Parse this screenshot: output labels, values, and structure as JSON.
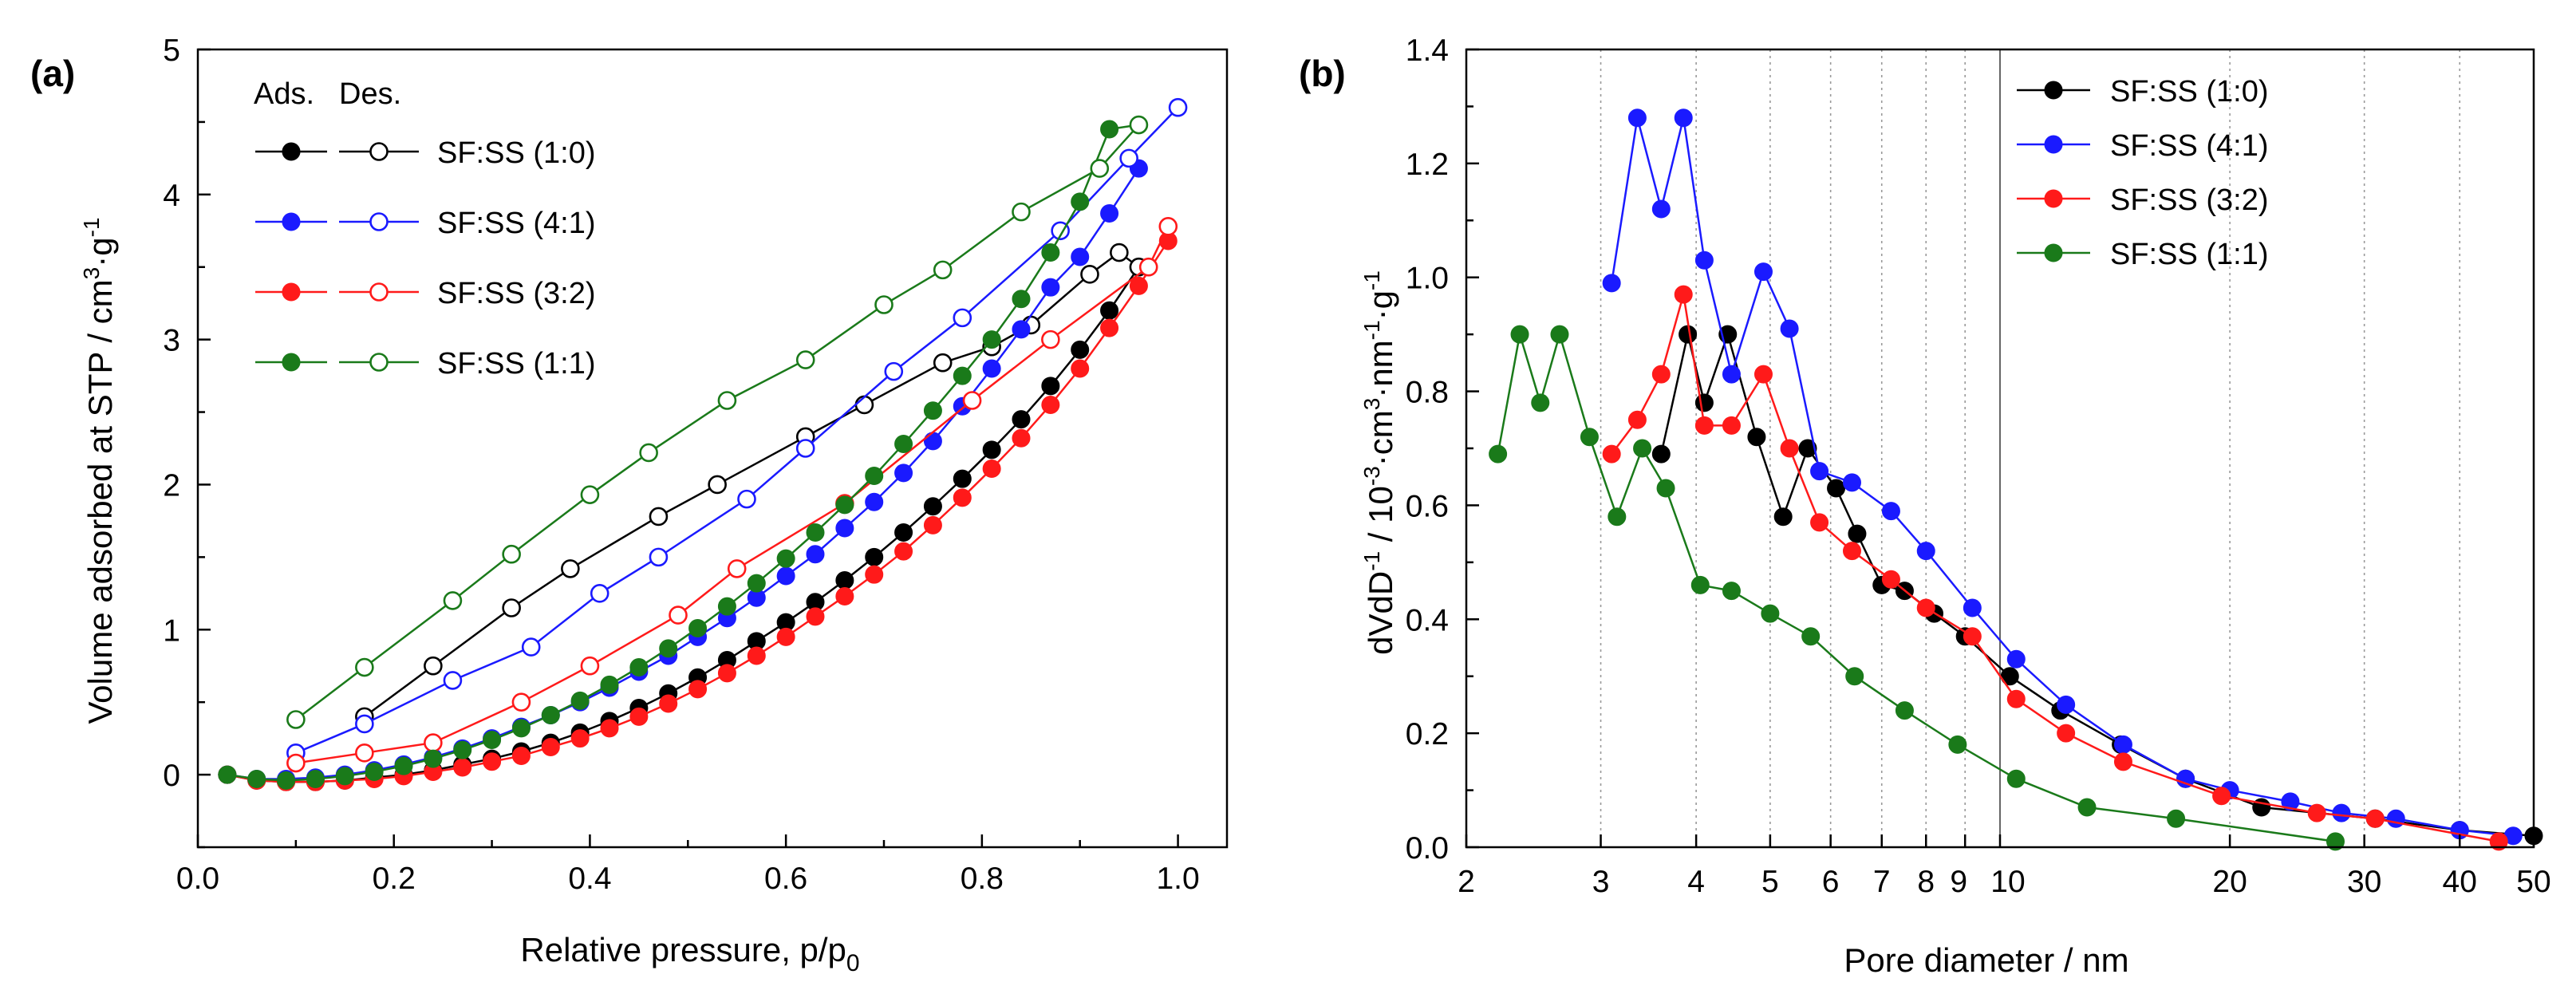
{
  "chart_data": [
    {
      "panel": "(a)",
      "type": "line",
      "xlabel": "Relative pressure, p/p",
      "xlabel_subscript": "0",
      "ylabel": "Volume adsorbed at STP / cm",
      "ylabel_sup1": "3",
      "ylabel_mid": "·g",
      "ylabel_sup2": "-1",
      "xlim": [
        0.0,
        1.05
      ],
      "ylim": [
        -0.5,
        5.0
      ],
      "xticks": [
        0.0,
        0.2,
        0.4,
        0.6,
        0.8,
        1.0
      ],
      "xtick_labels": [
        "0.0",
        "0.2",
        "0.4",
        "0.6",
        "0.8",
        "1.0"
      ],
      "yticks": [
        0,
        1,
        2,
        3,
        4,
        5
      ],
      "ytick_labels": [
        "0",
        "1",
        "2",
        "3",
        "4",
        "5"
      ],
      "legend_header_ads": "Ads.",
      "legend_header_des": "Des.",
      "legend_position": "top-left",
      "series": [
        {
          "name": "SF:SS (1:0)",
          "color": "#000000",
          "adsorption": {
            "x": [
              0.03,
              0.06,
              0.09,
              0.12,
              0.15,
              0.18,
              0.21,
              0.24,
              0.27,
              0.3,
              0.33,
              0.36,
              0.39,
              0.42,
              0.45,
              0.48,
              0.51,
              0.54,
              0.57,
              0.6,
              0.63,
              0.66,
              0.69,
              0.72,
              0.75,
              0.78,
              0.81,
              0.84,
              0.87,
              0.9,
              0.93,
              0.96
            ],
            "y": [
              0.0,
              -0.04,
              -0.05,
              -0.05,
              -0.04,
              -0.02,
              0.0,
              0.03,
              0.07,
              0.11,
              0.16,
              0.22,
              0.29,
              0.37,
              0.46,
              0.56,
              0.67,
              0.79,
              0.92,
              1.05,
              1.19,
              1.34,
              1.5,
              1.67,
              1.85,
              2.04,
              2.24,
              2.45,
              2.68,
              2.93,
              3.2,
              3.5
            ]
          },
          "desorption": {
            "x": [
              0.96,
              0.94,
              0.91,
              0.85,
              0.81,
              0.76,
              0.68,
              0.62,
              0.53,
              0.47,
              0.38,
              0.32,
              0.24,
              0.17
            ],
            "y": [
              3.5,
              3.6,
              3.45,
              3.1,
              2.95,
              2.84,
              2.55,
              2.33,
              2.0,
              1.78,
              1.42,
              1.15,
              0.75,
              0.4
            ]
          }
        },
        {
          "name": "SF:SS (4:1)",
          "color": "#1a1aff",
          "adsorption": {
            "x": [
              0.03,
              0.06,
              0.09,
              0.12,
              0.15,
              0.18,
              0.21,
              0.24,
              0.27,
              0.3,
              0.33,
              0.36,
              0.39,
              0.42,
              0.45,
              0.48,
              0.51,
              0.54,
              0.57,
              0.6,
              0.63,
              0.66,
              0.69,
              0.72,
              0.75,
              0.78,
              0.81,
              0.84,
              0.87,
              0.9,
              0.93,
              0.96
            ],
            "y": [
              0.0,
              -0.03,
              -0.03,
              -0.02,
              0.0,
              0.03,
              0.07,
              0.12,
              0.18,
              0.25,
              0.33,
              0.41,
              0.5,
              0.6,
              0.71,
              0.82,
              0.95,
              1.08,
              1.22,
              1.37,
              1.52,
              1.7,
              1.88,
              2.08,
              2.3,
              2.54,
              2.8,
              3.07,
              3.36,
              3.57,
              3.87,
              4.18
            ]
          },
          "desorption": {
            "x": [
              1.0,
              0.95,
              0.88,
              0.78,
              0.71,
              0.62,
              0.56,
              0.47,
              0.41,
              0.34,
              0.26,
              0.17,
              0.1
            ],
            "y": [
              4.6,
              4.25,
              3.75,
              3.15,
              2.78,
              2.25,
              1.9,
              1.5,
              1.25,
              0.88,
              0.65,
              0.35,
              0.15
            ]
          }
        },
        {
          "name": "SF:SS (3:2)",
          "color": "#ff1a1a",
          "adsorption": {
            "x": [
              0.03,
              0.06,
              0.09,
              0.12,
              0.15,
              0.18,
              0.21,
              0.24,
              0.27,
              0.3,
              0.33,
              0.36,
              0.39,
              0.42,
              0.45,
              0.48,
              0.51,
              0.54,
              0.57,
              0.6,
              0.63,
              0.66,
              0.69,
              0.72,
              0.75,
              0.78,
              0.81,
              0.84,
              0.87,
              0.9,
              0.93,
              0.96,
              0.99
            ],
            "y": [
              0.0,
              -0.04,
              -0.05,
              -0.05,
              -0.04,
              -0.03,
              -0.01,
              0.02,
              0.05,
              0.09,
              0.13,
              0.19,
              0.25,
              0.32,
              0.4,
              0.49,
              0.59,
              0.7,
              0.82,
              0.95,
              1.09,
              1.23,
              1.38,
              1.54,
              1.72,
              1.91,
              2.11,
              2.32,
              2.55,
              2.8,
              3.08,
              3.37,
              3.68
            ]
          },
          "desorption": {
            "x": [
              0.99,
              0.97,
              0.87,
              0.79,
              0.66,
              0.55,
              0.49,
              0.4,
              0.33,
              0.24,
              0.17,
              0.1
            ],
            "y": [
              3.78,
              3.5,
              3.0,
              2.58,
              1.87,
              1.42,
              1.1,
              0.75,
              0.5,
              0.22,
              0.15,
              0.08
            ]
          }
        },
        {
          "name": "SF:SS (1:1)",
          "color": "#1a7a1a",
          "adsorption": {
            "x": [
              0.03,
              0.06,
              0.09,
              0.12,
              0.15,
              0.18,
              0.21,
              0.24,
              0.27,
              0.3,
              0.33,
              0.36,
              0.39,
              0.42,
              0.45,
              0.48,
              0.51,
              0.54,
              0.57,
              0.6,
              0.63,
              0.66,
              0.69,
              0.72,
              0.75,
              0.78,
              0.81,
              0.84,
              0.87,
              0.9,
              0.93,
              0.96
            ],
            "y": [
              0.0,
              -0.03,
              -0.04,
              -0.03,
              -0.01,
              0.02,
              0.06,
              0.11,
              0.17,
              0.24,
              0.32,
              0.41,
              0.51,
              0.62,
              0.74,
              0.87,
              1.01,
              1.16,
              1.32,
              1.49,
              1.67,
              1.86,
              2.06,
              2.28,
              2.51,
              2.75,
              3.0,
              3.28,
              3.6,
              3.95,
              4.45,
              4.48
            ]
          },
          "desorption": {
            "x": [
              0.96,
              0.92,
              0.84,
              0.76,
              0.7,
              0.62,
              0.54,
              0.46,
              0.4,
              0.32,
              0.26,
              0.17,
              0.1
            ],
            "y": [
              4.48,
              4.18,
              3.88,
              3.48,
              3.24,
              2.86,
              2.58,
              2.22,
              1.93,
              1.52,
              1.2,
              0.74,
              0.38
            ]
          }
        }
      ]
    },
    {
      "panel": "(b)",
      "type": "line",
      "xscale": "log",
      "xlabel": "Pore diameter / nm",
      "ylabel_prefix": "dVdD",
      "ylabel_sup1": "-1",
      "ylabel_mid1": " / 10",
      "ylabel_sup2": "-3",
      "ylabel_mid2": "·cm",
      "ylabel_sup3": "3",
      "ylabel_mid3": "·nm",
      "ylabel_sup4": "-1",
      "ylabel_mid4": "·g",
      "ylabel_sup5": "-1",
      "xlim": [
        2,
        50
      ],
      "ylim": [
        0.0,
        1.4
      ],
      "xticks": [
        2,
        3,
        4,
        5,
        6,
        7,
        8,
        9,
        10,
        20,
        30,
        40,
        50
      ],
      "xtick_labels": [
        "2",
        "3",
        "4",
        "5",
        "6",
        "7",
        "8",
        "9",
        "10",
        "20",
        "30",
        "40",
        "50"
      ],
      "grid_x": [
        3,
        4,
        5,
        6,
        7,
        8,
        9,
        20,
        30,
        40
      ],
      "reference_line_x": 10,
      "yticks": [
        0.0,
        0.2,
        0.4,
        0.6,
        0.8,
        1.0,
        1.2,
        1.4
      ],
      "ytick_labels": [
        "0.0",
        "0.2",
        "0.4",
        "0.6",
        "0.8",
        "1.0",
        "1.2",
        "1.4"
      ],
      "legend_position": "top-right",
      "series": [
        {
          "name": "SF:SS (1:0)",
          "color": "#000000",
          "x": [
            3.6,
            3.9,
            4.1,
            4.4,
            4.8,
            5.2,
            5.6,
            6.1,
            6.5,
            7.0,
            7.5,
            8.2,
            9.0,
            10.3,
            12.0,
            14.4,
            17.5,
            22.0,
            31.0,
            40.0,
            50.0
          ],
          "y": [
            0.69,
            0.9,
            0.78,
            0.9,
            0.72,
            0.58,
            0.7,
            0.63,
            0.55,
            0.46,
            0.45,
            0.41,
            0.37,
            0.3,
            0.24,
            0.18,
            0.12,
            0.07,
            0.05,
            0.03,
            0.02
          ]
        },
        {
          "name": "SF:SS (4:1)",
          "color": "#1a1aff",
          "x": [
            3.1,
            3.35,
            3.6,
            3.85,
            4.1,
            4.45,
            4.9,
            5.3,
            5.8,
            6.4,
            7.2,
            8.0,
            9.2,
            10.5,
            12.2,
            14.5,
            17.5,
            20.0,
            24.0,
            28.0,
            33.0,
            40.0,
            47.0
          ],
          "y": [
            0.99,
            1.28,
            1.12,
            1.28,
            1.03,
            0.83,
            1.01,
            0.91,
            0.66,
            0.64,
            0.59,
            0.52,
            0.42,
            0.33,
            0.25,
            0.18,
            0.12,
            0.1,
            0.08,
            0.06,
            0.05,
            0.03,
            0.02
          ]
        },
        {
          "name": "SF:SS (3:2)",
          "color": "#ff1a1a",
          "x": [
            3.1,
            3.35,
            3.6,
            3.85,
            4.1,
            4.45,
            4.9,
            5.3,
            5.8,
            6.4,
            7.2,
            8.0,
            9.2,
            10.5,
            12.2,
            14.5,
            19.5,
            26.0,
            31.0,
            45.0
          ],
          "y": [
            0.69,
            0.75,
            0.83,
            0.97,
            0.74,
            0.74,
            0.83,
            0.7,
            0.57,
            0.52,
            0.47,
            0.42,
            0.37,
            0.26,
            0.2,
            0.15,
            0.09,
            0.06,
            0.05,
            0.01
          ]
        },
        {
          "name": "SF:SS (1:1)",
          "color": "#1a7a1a",
          "x": [
            2.2,
            2.35,
            2.5,
            2.65,
            2.9,
            3.15,
            3.4,
            3.65,
            4.05,
            4.45,
            5.0,
            5.65,
            6.45,
            7.5,
            8.8,
            10.5,
            13.0,
            17.0,
            27.5
          ],
          "y": [
            0.69,
            0.9,
            0.78,
            0.9,
            0.72,
            0.58,
            0.7,
            0.63,
            0.46,
            0.45,
            0.41,
            0.37,
            0.3,
            0.24,
            0.18,
            0.12,
            0.07,
            0.05,
            0.01
          ]
        }
      ]
    }
  ]
}
